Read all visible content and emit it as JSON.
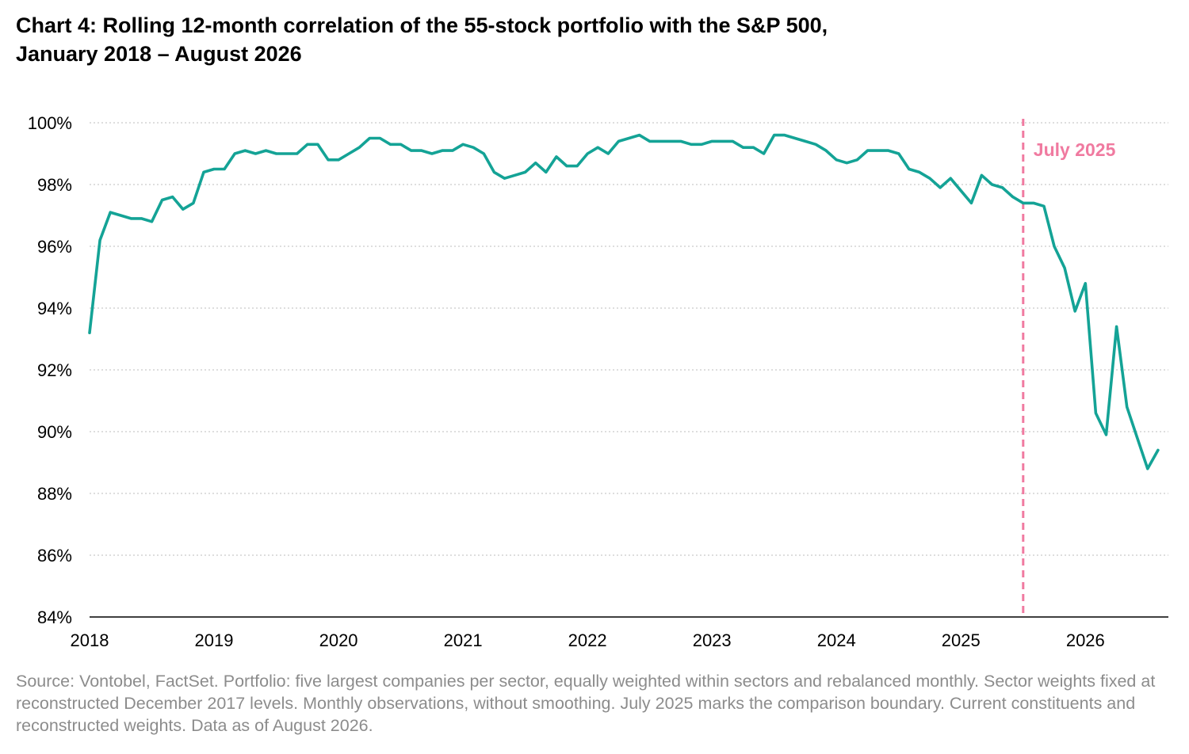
{
  "title_line1": "Chart 4: Rolling 12-month correlation of the 55-stock portfolio with the S&P 500,",
  "title_line2": "January 2018 – August 2026",
  "source_note": "Source: Vontobel, FactSet. Portfolio: five largest companies per sector, equally weighted within sectors and rebalanced monthly. Sector weights fixed at reconstructed December 2017 levels. Monthly observations, without smoothing. July 2025 marks the comparison boundary. Current constituents and reconstructed weights. Data as of August 2026.",
  "colors": {
    "line": "#14a396",
    "marker": "#f07aa0",
    "grid": "#bdbdbd",
    "axis": "#000000",
    "source_text": "#8c8c8c"
  },
  "chart_data": {
    "type": "line",
    "title": "Chart 4: Rolling 12-month correlation of the 55-stock portfolio with the S&P 500, January 2018 – August 2026",
    "xlabel": "",
    "ylabel": "",
    "x_start": "2018-01",
    "x_end": "2026-08",
    "xlim": [
      "2018-01",
      "2026-09"
    ],
    "ylim": [
      84,
      100
    ],
    "grid": true,
    "legend": "none",
    "x_ticks": [
      "2018",
      "2019",
      "2020",
      "2021",
      "2022",
      "2023",
      "2024",
      "2025",
      "2026"
    ],
    "y_ticks": [
      "84%",
      "86%",
      "88%",
      "90%",
      "92%",
      "94%",
      "96%",
      "98%",
      "100%"
    ],
    "y_tick_values": [
      84,
      86,
      88,
      90,
      92,
      94,
      96,
      98,
      100
    ],
    "annotation": {
      "label": "July 2025",
      "x": "2025-07"
    },
    "series": [
      {
        "values": [
          93.2,
          96.2,
          97.1,
          97.0,
          96.9,
          96.9,
          96.8,
          97.5,
          97.6,
          97.2,
          97.4,
          98.4,
          98.5,
          98.5,
          99.0,
          99.1,
          99.0,
          99.1,
          99.0,
          99.0,
          99.0,
          99.3,
          99.3,
          98.8,
          98.8,
          99.0,
          99.2,
          99.5,
          99.5,
          99.3,
          99.3,
          99.1,
          99.1,
          99.0,
          99.1,
          99.1,
          99.3,
          99.2,
          99.0,
          98.4,
          98.2,
          98.3,
          98.4,
          98.7,
          98.4,
          98.9,
          98.6,
          98.6,
          99.0,
          99.2,
          99.0,
          99.4,
          99.5,
          99.6,
          99.4,
          99.4,
          99.4,
          99.4,
          99.3,
          99.3,
          99.4,
          99.4,
          99.4,
          99.2,
          99.2,
          99.0,
          99.6,
          99.6,
          99.5,
          99.4,
          99.3,
          99.1,
          98.8,
          98.7,
          98.8,
          99.1,
          99.1,
          99.1,
          99.0,
          98.5,
          98.4,
          98.2,
          97.9,
          98.2,
          97.8,
          97.4,
          98.3,
          98.0,
          97.9,
          97.6,
          97.4,
          97.4,
          97.3,
          96.0,
          95.3,
          93.9,
          94.8,
          90.6,
          89.9,
          93.4,
          90.8,
          89.8,
          88.8,
          89.4
        ]
      }
    ]
  }
}
